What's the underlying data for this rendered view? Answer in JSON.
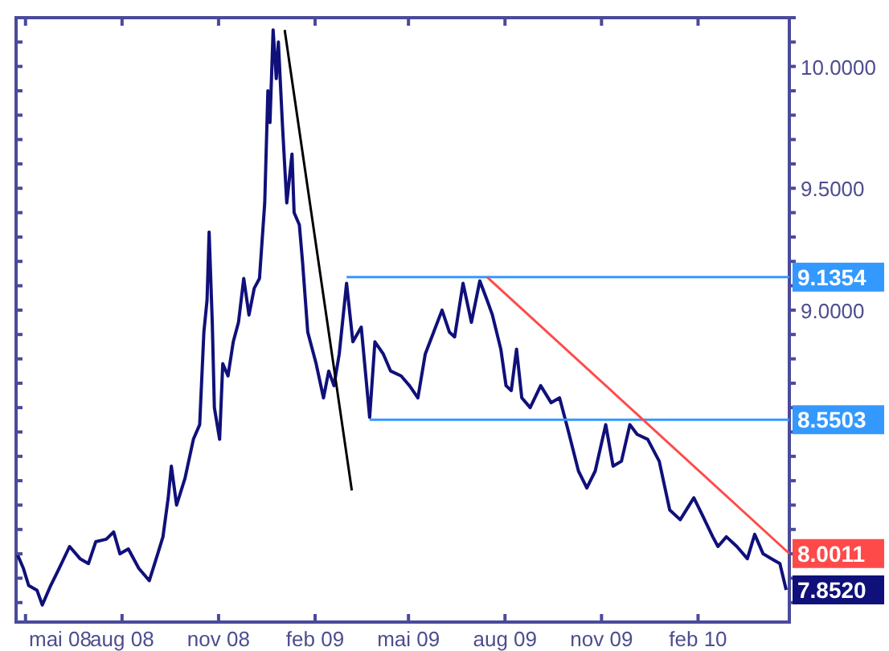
{
  "chart_data": {
    "type": "line",
    "xlim": [
      "2008-04-22",
      "2010-04-29"
    ],
    "ylim": [
      7.72,
      10.2
    ],
    "xticks": [
      {
        "value": "2008-05-01",
        "label": "mai 08"
      },
      {
        "value": "2008-08-01",
        "label": "aug 08"
      },
      {
        "value": "2008-11-01",
        "label": "nov 08"
      },
      {
        "value": "2009-02-01",
        "label": "feb 09"
      },
      {
        "value": "2009-05-01",
        "label": "mai 09"
      },
      {
        "value": "2009-08-01",
        "label": "aug 09"
      },
      {
        "value": "2009-11-01",
        "label": "nov 09"
      },
      {
        "value": "2010-02-01",
        "label": "feb 10"
      }
    ],
    "yticks": [
      {
        "value": 7.8,
        "label": null
      },
      {
        "value": 7.9,
        "label": null
      },
      {
        "value": 8.0,
        "label": null
      },
      {
        "value": 8.1,
        "label": null
      },
      {
        "value": 8.2,
        "label": null
      },
      {
        "value": 8.3,
        "label": null
      },
      {
        "value": 8.4,
        "label": null
      },
      {
        "value": 8.5,
        "label": null
      },
      {
        "value": 8.6,
        "label": null
      },
      {
        "value": 8.7,
        "label": null
      },
      {
        "value": 8.8,
        "label": null
      },
      {
        "value": 8.9,
        "label": null
      },
      {
        "value": 9.0,
        "label": "9.0000"
      },
      {
        "value": 9.1,
        "label": null
      },
      {
        "value": 9.2,
        "label": null
      },
      {
        "value": 9.3,
        "label": null
      },
      {
        "value": 9.4,
        "label": null
      },
      {
        "value": 9.5,
        "label": "9.5000"
      },
      {
        "value": 9.6,
        "label": null
      },
      {
        "value": 9.7,
        "label": null
      },
      {
        "value": 9.8,
        "label": null
      },
      {
        "value": 9.9,
        "label": null
      },
      {
        "value": 10.0,
        "label": "10.0000"
      },
      {
        "value": 10.1,
        "label": null
      },
      {
        "value": 10.2,
        "label": null
      }
    ],
    "grid": false,
    "series": [
      {
        "color": "#10107a",
        "x": [
          "2008-04-23",
          "2008-04-29",
          "2008-05-04",
          "2008-05-12",
          "2008-05-17",
          "2008-05-25",
          "2008-06-02",
          "2008-06-12",
          "2008-06-22",
          "2008-06-30",
          "2008-07-07",
          "2008-07-17",
          "2008-07-24",
          "2008-07-30",
          "2008-08-07",
          "2008-08-17",
          "2008-08-27",
          "2008-09-04",
          "2008-09-09",
          "2008-09-14",
          "2008-09-17",
          "2008-09-22",
          "2008-09-30",
          "2008-10-08",
          "2008-10-14",
          "2008-10-18",
          "2008-10-21",
          "2008-10-23",
          "2008-10-26",
          "2008-10-28",
          "2008-11-02",
          "2008-11-05",
          "2008-11-10",
          "2008-11-15",
          "2008-11-20",
          "2008-11-25",
          "2008-11-30",
          "2008-12-05",
          "2008-12-10",
          "2008-12-15",
          "2008-12-18",
          "2008-12-20",
          "2008-12-23",
          "2008-12-26",
          "2008-12-28",
          "2009-01-01",
          "2009-01-05",
          "2009-01-10",
          "2009-01-12",
          "2009-01-17",
          "2009-01-20",
          "2009-01-25",
          "2009-02-02",
          "2009-02-09",
          "2009-02-14",
          "2009-02-19",
          "2009-02-24",
          "2009-03-03",
          "2009-03-09",
          "2009-03-17",
          "2009-03-25",
          "2009-03-30",
          "2009-04-07",
          "2009-04-14",
          "2009-04-24",
          "2009-05-02",
          "2009-05-10",
          "2009-05-17",
          "2009-05-25",
          "2009-06-02",
          "2009-06-09",
          "2009-06-14",
          "2009-06-22",
          "2009-06-30",
          "2009-07-08",
          "2009-07-15",
          "2009-07-20",
          "2009-07-28",
          "2009-08-02",
          "2009-08-07",
          "2009-08-12",
          "2009-08-17",
          "2009-08-25",
          "2009-09-04",
          "2009-09-14",
          "2009-09-22",
          "2009-09-30",
          "2009-10-10",
          "2009-10-18",
          "2009-10-26",
          "2009-11-05",
          "2009-11-12",
          "2009-11-20",
          "2009-11-28",
          "2009-12-05",
          "2009-12-15",
          "2009-12-26",
          "2010-01-05",
          "2010-01-15",
          "2010-01-28",
          "2010-02-05",
          "2010-02-15",
          "2010-02-20",
          "2010-02-28",
          "2010-03-10",
          "2010-03-20",
          "2010-03-27",
          "2010-04-04",
          "2010-04-12",
          "2010-04-20",
          "2010-04-26"
        ],
        "values": [
          8.0,
          7.94,
          7.87,
          7.85,
          7.79,
          7.87,
          7.94,
          8.03,
          7.98,
          7.96,
          8.05,
          8.06,
          8.09,
          8.0,
          8.02,
          7.94,
          7.89,
          8.0,
          8.07,
          8.23,
          8.36,
          8.2,
          8.31,
          8.47,
          8.53,
          8.91,
          9.04,
          9.32,
          8.95,
          8.6,
          8.47,
          8.78,
          8.73,
          8.87,
          8.95,
          9.13,
          8.98,
          9.09,
          9.13,
          9.44,
          9.9,
          9.77,
          10.15,
          9.95,
          10.1,
          9.75,
          9.44,
          9.64,
          9.4,
          9.35,
          9.2,
          8.91,
          8.78,
          8.64,
          8.75,
          8.69,
          8.82,
          9.11,
          8.87,
          8.93,
          8.56,
          8.87,
          8.82,
          8.75,
          8.73,
          8.69,
          8.64,
          8.82,
          8.91,
          9.0,
          8.91,
          8.89,
          9.11,
          8.95,
          9.12,
          9.04,
          8.98,
          8.84,
          8.69,
          8.67,
          8.84,
          8.64,
          8.6,
          8.69,
          8.62,
          8.64,
          8.51,
          8.34,
          8.27,
          8.34,
          8.53,
          8.36,
          8.38,
          8.53,
          8.49,
          8.47,
          8.38,
          8.18,
          8.14,
          8.23,
          8.16,
          8.07,
          8.03,
          8.07,
          8.03,
          7.98,
          8.08,
          8.0,
          7.98,
          7.96,
          7.852
        ],
        "value_labels": [
          null,
          null,
          null,
          null,
          null,
          null,
          null,
          null,
          null,
          null,
          null,
          null,
          null,
          null,
          null,
          null,
          null,
          null,
          null,
          null,
          null,
          null,
          null,
          null,
          null,
          null,
          null,
          null,
          null,
          null,
          null,
          null,
          null,
          null,
          null,
          null,
          null,
          null,
          null,
          null,
          null,
          null,
          null,
          null,
          null,
          null,
          null,
          null,
          null,
          null,
          null,
          null,
          null,
          null,
          null,
          null,
          null,
          null,
          null,
          null,
          null,
          null,
          null,
          null,
          null,
          null,
          null,
          null,
          null,
          null,
          null,
          null,
          null,
          null,
          null,
          null,
          null,
          null,
          null,
          null,
          null,
          null,
          null,
          null,
          null,
          null,
          null,
          null,
          null,
          null,
          null,
          null,
          null,
          null,
          null,
          null,
          null,
          null,
          null,
          null,
          null,
          null,
          null,
          null,
          null,
          null,
          null,
          null,
          null,
          null,
          "7.8520"
        ]
      },
      {
        "color": "#000000",
        "x": [
          "2009-01-03",
          "2009-03-08"
        ],
        "values": [
          10.15,
          8.26
        ]
      },
      {
        "color": "#3399ff",
        "x": [
          "2009-03-03",
          "2010-04-29"
        ],
        "values": [
          9.1354,
          9.1354
        ],
        "value_labels": [
          null,
          "9.1354"
        ]
      },
      {
        "color": "#3399ff",
        "x": [
          "2009-03-25",
          "2010-04-29"
        ],
        "values": [
          8.5503,
          8.5503
        ],
        "value_labels": [
          null,
          "8.5503"
        ]
      },
      {
        "color": "#ff4a4a",
        "x": [
          "2009-07-15",
          "2010-04-29"
        ],
        "values": [
          9.1354,
          8.0011
        ],
        "value_labels": [
          null,
          "8.0011"
        ]
      }
    ]
  }
}
